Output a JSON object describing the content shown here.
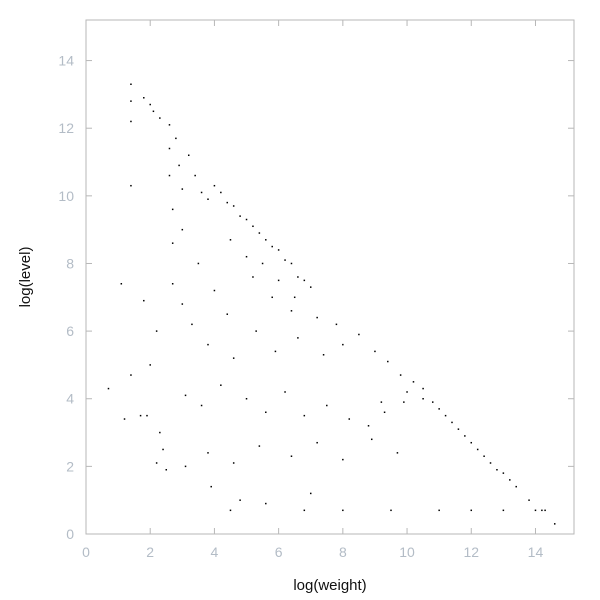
{
  "chart_data": {
    "type": "scatter",
    "title": "",
    "xlabel": "log(weight)",
    "ylabel": "log(level)",
    "xlim": [
      0,
      15.2
    ],
    "ylim": [
      0,
      15.2
    ],
    "xticks": [
      0,
      2,
      4,
      6,
      8,
      10,
      12,
      14
    ],
    "yticks": [
      0,
      2,
      4,
      6,
      8,
      10,
      12,
      14
    ],
    "grid": false,
    "legend": "none",
    "point_color": "#000000",
    "axis_color": "#b7b7b7",
    "tick_label_color": "#b3bcc6",
    "boundary": "points fill the triangle under the line log(level) = 14.9 - log(weight)",
    "series": [
      {
        "points": [
          [
            1.4,
            13.3
          ],
          [
            1.4,
            12.8
          ],
          [
            1.4,
            12.2
          ],
          [
            1.4,
            10.3
          ],
          [
            1.4,
            4.7
          ],
          [
            1.8,
            12.9
          ],
          [
            2.0,
            12.7
          ],
          [
            2.1,
            12.5
          ],
          [
            2.3,
            12.3
          ],
          [
            2.6,
            12.1
          ],
          [
            2.6,
            11.4
          ],
          [
            2.6,
            10.6
          ],
          [
            2.7,
            9.6
          ],
          [
            2.7,
            8.6
          ],
          [
            2.7,
            7.4
          ],
          [
            2.8,
            11.7
          ],
          [
            2.9,
            10.9
          ],
          [
            3.0,
            10.2
          ],
          [
            3.0,
            9.0
          ],
          [
            3.2,
            11.2
          ],
          [
            3.4,
            10.6
          ],
          [
            3.6,
            10.1
          ],
          [
            3.8,
            9.9
          ],
          [
            4.0,
            10.3
          ],
          [
            4.2,
            10.1
          ],
          [
            4.4,
            9.8
          ],
          [
            4.6,
            9.7
          ],
          [
            4.8,
            9.4
          ],
          [
            5.0,
            9.3
          ],
          [
            5.2,
            9.1
          ],
          [
            5.4,
            8.9
          ],
          [
            5.6,
            8.7
          ],
          [
            5.8,
            8.5
          ],
          [
            6.0,
            8.4
          ],
          [
            6.2,
            8.1
          ],
          [
            6.4,
            8.0
          ],
          [
            6.6,
            7.6
          ],
          [
            6.8,
            7.5
          ],
          [
            7.0,
            7.3
          ],
          [
            4.5,
            8.7
          ],
          [
            5.0,
            8.2
          ],
          [
            5.5,
            8.0
          ],
          [
            6.0,
            7.5
          ],
          [
            6.5,
            7.0
          ],
          [
            5.2,
            7.6
          ],
          [
            5.8,
            7.0
          ],
          [
            6.4,
            6.6
          ],
          [
            7.2,
            6.4
          ],
          [
            7.8,
            6.2
          ],
          [
            3.5,
            8.0
          ],
          [
            4.0,
            7.2
          ],
          [
            4.4,
            6.5
          ],
          [
            3.8,
            5.6
          ],
          [
            4.6,
            5.2
          ],
          [
            5.3,
            6.0
          ],
          [
            5.9,
            5.4
          ],
          [
            6.6,
            5.8
          ],
          [
            7.4,
            5.3
          ],
          [
            8.0,
            5.6
          ],
          [
            8.5,
            5.9
          ],
          [
            9.0,
            5.4
          ],
          [
            9.4,
            5.1
          ],
          [
            9.8,
            4.7
          ],
          [
            10.2,
            4.5
          ],
          [
            10.5,
            4.3
          ],
          [
            3.0,
            6.8
          ],
          [
            3.3,
            6.2
          ],
          [
            3.1,
            4.1
          ],
          [
            3.6,
            3.8
          ],
          [
            4.2,
            4.4
          ],
          [
            5.0,
            4.0
          ],
          [
            5.6,
            3.6
          ],
          [
            6.2,
            4.2
          ],
          [
            6.8,
            3.5
          ],
          [
            7.5,
            3.8
          ],
          [
            8.2,
            3.4
          ],
          [
            8.8,
            3.2
          ],
          [
            9.3,
            3.6
          ],
          [
            9.9,
            3.9
          ],
          [
            2.2,
            6.0
          ],
          [
            2.0,
            5.0
          ],
          [
            1.9,
            3.5
          ],
          [
            2.3,
            3.0
          ],
          [
            2.2,
            2.1
          ],
          [
            2.4,
            2.5
          ],
          [
            3.1,
            2.0
          ],
          [
            3.8,
            2.4
          ],
          [
            4.6,
            2.1
          ],
          [
            5.4,
            2.6
          ],
          [
            6.4,
            2.3
          ],
          [
            7.2,
            2.7
          ],
          [
            8.0,
            2.2
          ],
          [
            8.9,
            2.8
          ],
          [
            9.7,
            2.4
          ],
          [
            0.7,
            4.3
          ],
          [
            1.2,
            3.4
          ],
          [
            1.7,
            3.5
          ],
          [
            1.1,
            7.4
          ],
          [
            1.8,
            6.9
          ],
          [
            2.5,
            1.9
          ],
          [
            3.9,
            1.4
          ],
          [
            4.8,
            1.0
          ],
          [
            5.6,
            0.9
          ],
          [
            7.0,
            1.2
          ],
          [
            9.2,
            3.9
          ],
          [
            10.0,
            4.2
          ],
          [
            10.5,
            4.0
          ],
          [
            10.8,
            3.9
          ],
          [
            11.0,
            3.7
          ],
          [
            11.2,
            3.5
          ],
          [
            11.4,
            3.3
          ],
          [
            11.6,
            3.1
          ],
          [
            11.8,
            2.9
          ],
          [
            12.0,
            2.7
          ],
          [
            12.2,
            2.5
          ],
          [
            12.4,
            2.3
          ],
          [
            12.6,
            2.1
          ],
          [
            12.8,
            1.9
          ],
          [
            13.0,
            1.8
          ],
          [
            13.2,
            1.6
          ],
          [
            13.4,
            1.4
          ],
          [
            13.8,
            1.0
          ],
          [
            14.2,
            0.7
          ],
          [
            14.6,
            0.3
          ],
          [
            4.5,
            0.7
          ],
          [
            6.8,
            0.7
          ],
          [
            8.0,
            0.7
          ],
          [
            9.5,
            0.7
          ],
          [
            11.0,
            0.7
          ],
          [
            12.0,
            0.7
          ],
          [
            13.0,
            0.7
          ],
          [
            14.0,
            0.7
          ],
          [
            14.3,
            0.7
          ]
        ]
      }
    ]
  }
}
